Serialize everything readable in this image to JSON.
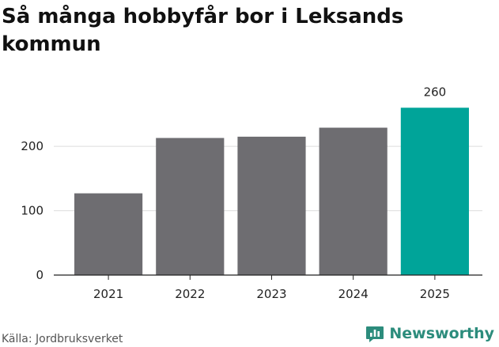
{
  "title": "Så många hobbyfår bor i Leksands kommun",
  "source": "Källa: Jordbruksverket",
  "brand": {
    "name": "Newsworthy",
    "icon": "newsworthy-logo-icon"
  },
  "colors": {
    "bar": "#6e6d71",
    "highlight": "#00a499",
    "grid": "#dddddd",
    "axis": "#222222",
    "brand": "#2c8c7c"
  },
  "chart_data": {
    "type": "bar",
    "categories": [
      "2021",
      "2022",
      "2023",
      "2024",
      "2025"
    ],
    "values": [
      127,
      213,
      215,
      229,
      260
    ],
    "highlight_index": 4,
    "data_labels": {
      "4": "260"
    },
    "yticks": [
      0,
      100,
      200
    ],
    "ylim": [
      0,
      280
    ],
    "grid": true,
    "xlabel": "",
    "ylabel": ""
  }
}
